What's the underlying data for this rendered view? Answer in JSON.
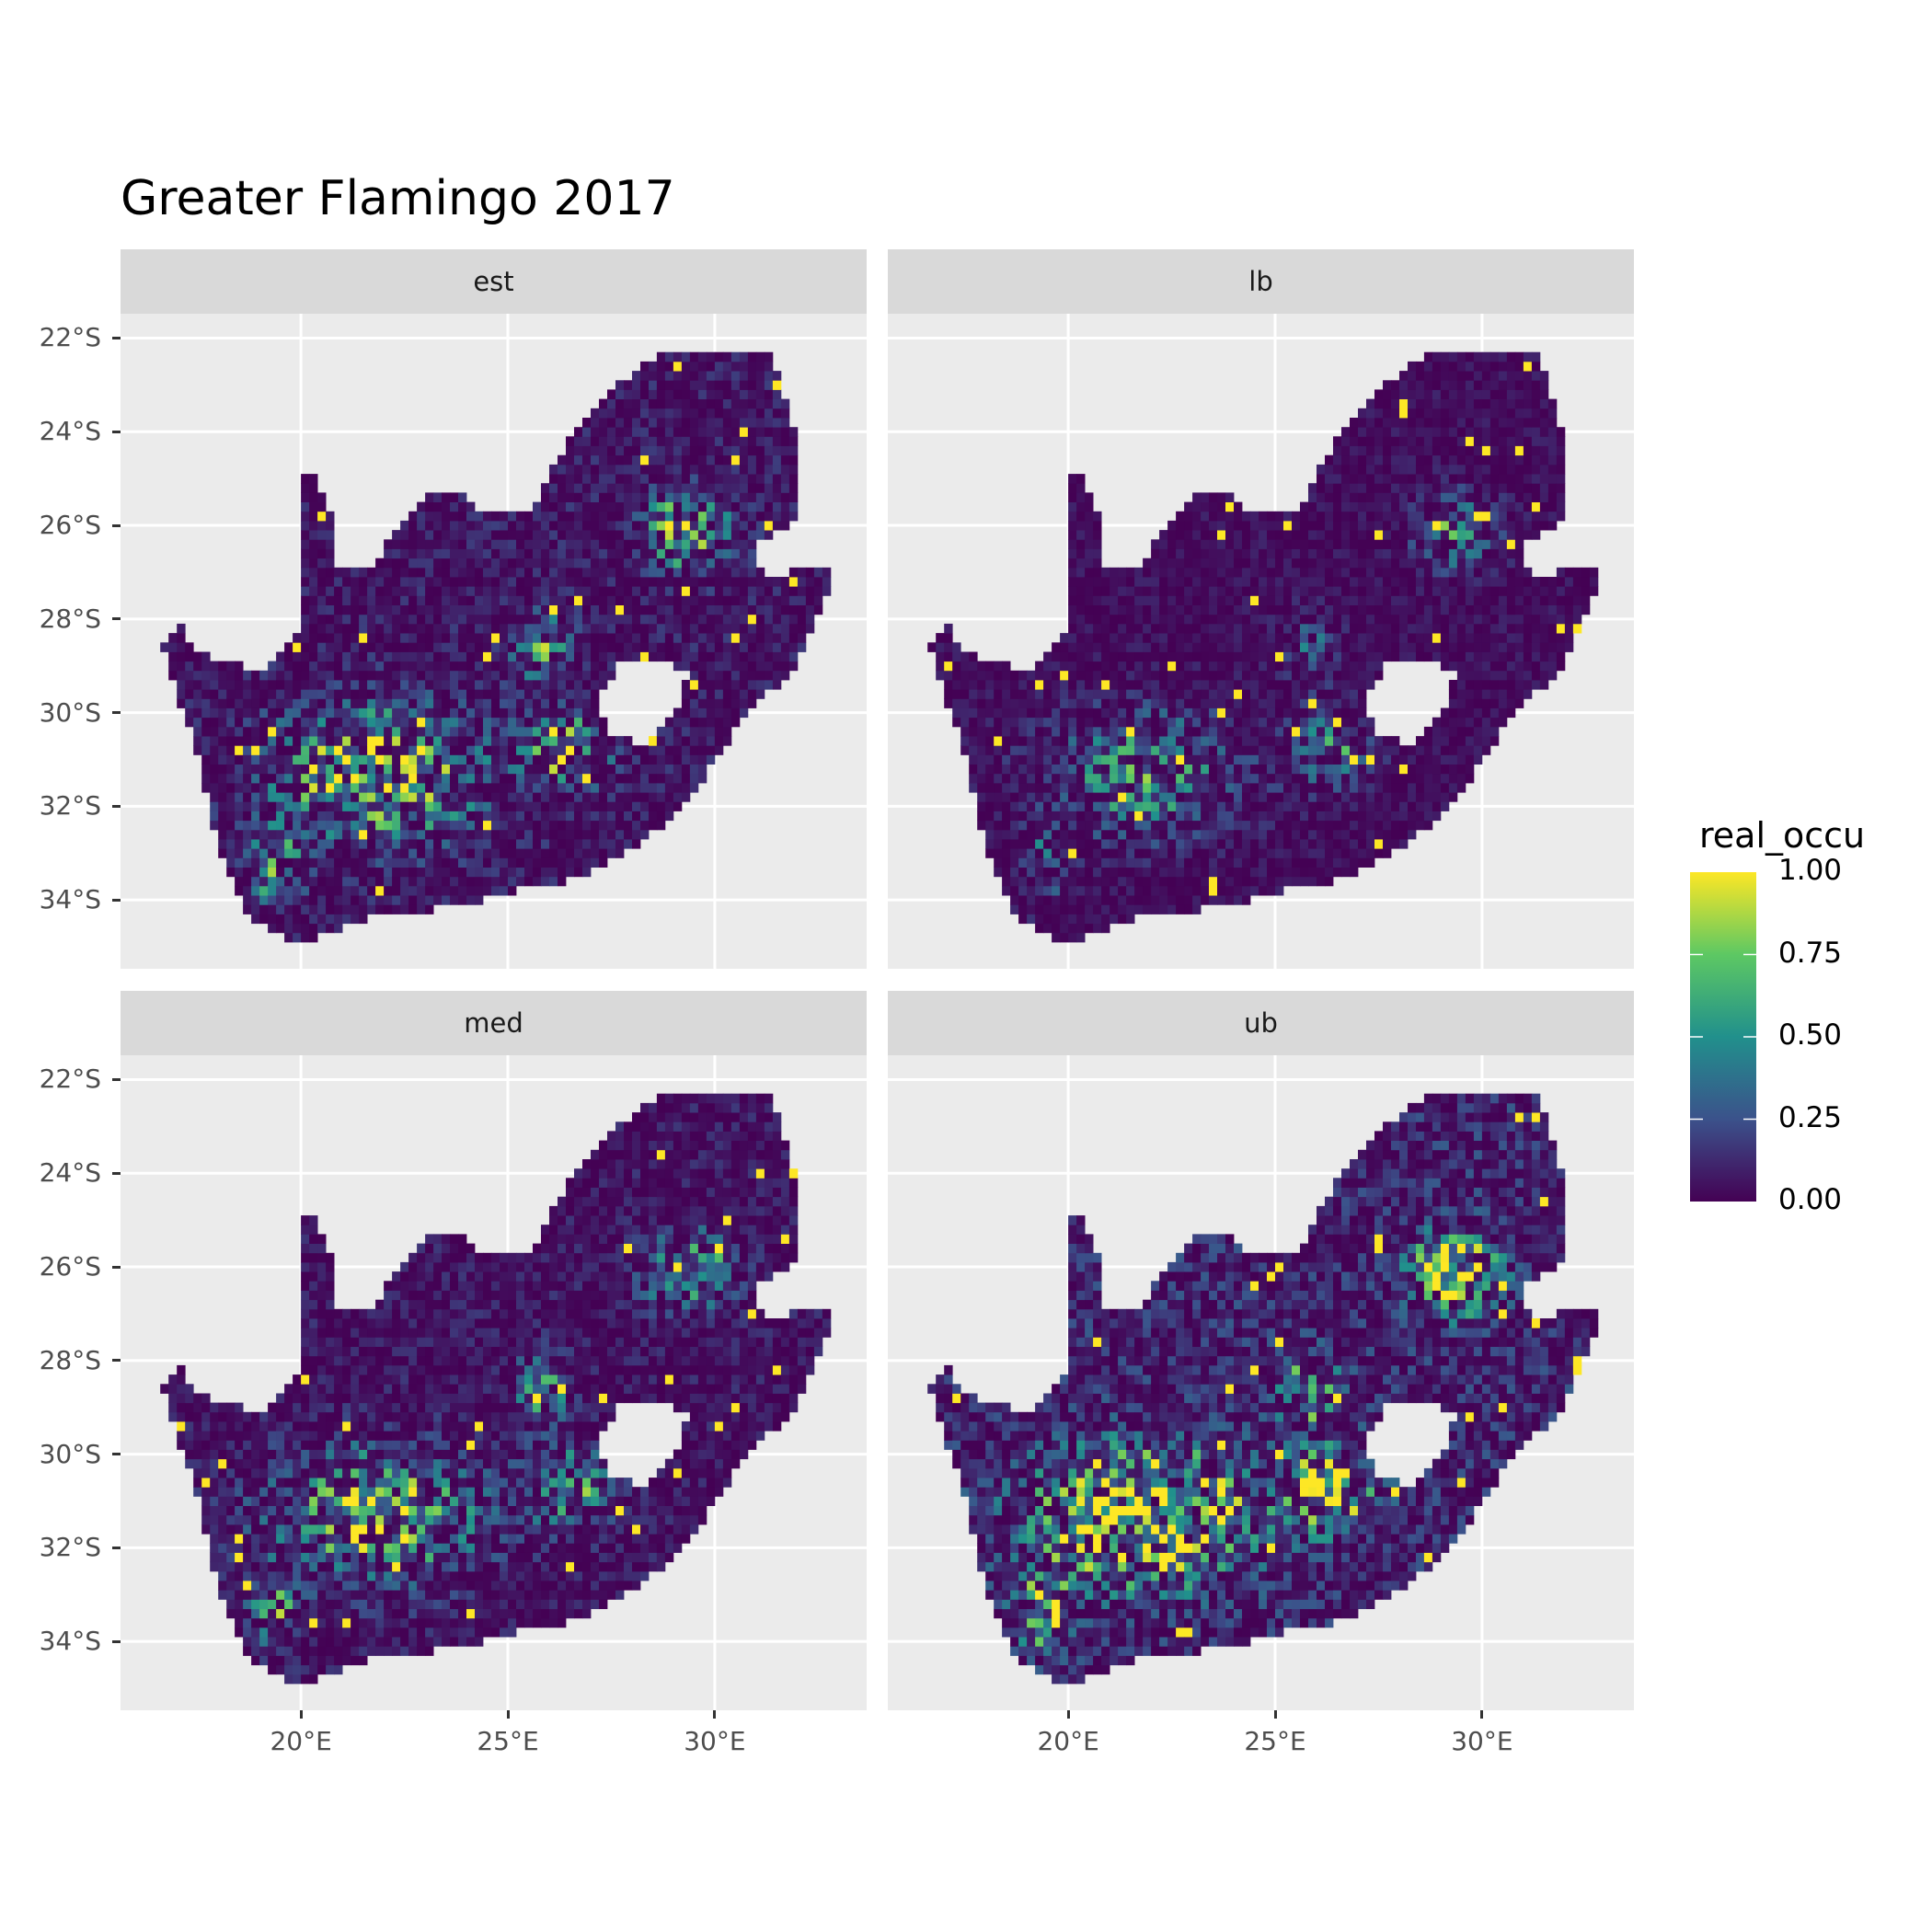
{
  "chart_data": {
    "type": "heatmap",
    "title": "Greater Flamingo 2017",
    "facets": [
      "est",
      "lb",
      "med",
      "ub"
    ],
    "x_ticks": [
      "20°E",
      "25°E",
      "30°E"
    ],
    "x_tick_values": [
      20,
      25,
      30
    ],
    "y_ticks": [
      "22°S",
      "24°S",
      "26°S",
      "28°S",
      "30°S",
      "32°S",
      "34°S"
    ],
    "y_tick_values": [
      -22,
      -24,
      -26,
      -28,
      -30,
      -32,
      -34
    ],
    "xlim": [
      15.64,
      33.67
    ],
    "ylim": [
      -35.47,
      -21.48
    ],
    "grid": true,
    "legend": {
      "title": "real_occu",
      "placement": "right",
      "labels": [
        "1.00",
        "0.75",
        "0.50",
        "0.25",
        "0.00"
      ],
      "values": [
        1.0,
        0.75,
        0.5,
        0.25,
        0.0
      ],
      "colormap": "viridis",
      "colors": [
        "#440154",
        "#3b528b",
        "#21908c",
        "#5dc863",
        "#fde725"
      ]
    }
  },
  "colors": {
    "panel_bg": "#ebebeb",
    "strip_bg": "#d9d9d9",
    "grid": "#ffffff"
  }
}
